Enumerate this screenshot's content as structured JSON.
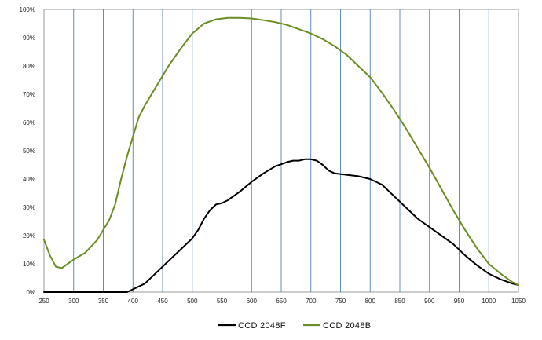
{
  "chart_data": {
    "type": "line",
    "title": "",
    "xlabel": "",
    "ylabel": "",
    "xlim": [
      250,
      1050
    ],
    "ylim": [
      0,
      100
    ],
    "x_ticks": [
      250,
      300,
      350,
      400,
      450,
      500,
      550,
      600,
      650,
      700,
      750,
      800,
      850,
      900,
      950,
      1000,
      1050
    ],
    "x_tick_labels": [
      "250",
      "300",
      "350",
      "400",
      "450",
      "500",
      "550",
      "600",
      "650",
      "700",
      "750",
      "800",
      "850",
      "900",
      "950",
      "1000",
      "1050"
    ],
    "y_ticks": [
      0,
      10,
      20,
      30,
      40,
      50,
      60,
      70,
      80,
      90,
      100
    ],
    "y_tick_labels": [
      "0%",
      "10%",
      "20%",
      "30%",
      "40%",
      "50%",
      "60%",
      "70%",
      "80%",
      "90%",
      "100%"
    ],
    "grid": {
      "vertical": true,
      "horizontal": false,
      "color": "#4f81bd"
    },
    "legend_position": "bottom-center",
    "series": [
      {
        "name": "CCD 2048F",
        "color": "#000000",
        "x": [
          250,
          300,
          350,
          390,
          400,
          420,
          440,
          460,
          480,
          500,
          510,
          520,
          530,
          540,
          550,
          560,
          580,
          600,
          620,
          640,
          660,
          670,
          680,
          690,
          700,
          710,
          720,
          730,
          740,
          760,
          780,
          800,
          810,
          820,
          840,
          860,
          880,
          900,
          920,
          940,
          960,
          980,
          1000,
          1020,
          1040,
          1050
        ],
        "y": [
          0,
          0,
          0,
          0,
          1,
          3,
          7,
          11,
          15,
          19,
          22,
          26,
          29,
          31,
          31.5,
          32.5,
          35.5,
          39,
          42,
          44.5,
          46,
          46.5,
          46.5,
          47,
          47,
          46.5,
          45,
          43,
          42,
          41.5,
          41,
          40,
          39,
          38,
          34,
          30,
          26,
          23,
          20,
          17,
          13,
          9.5,
          6.5,
          4.5,
          3,
          2.5
        ]
      },
      {
        "name": "CCD 2048B",
        "color": "#6b8e23",
        "x": [
          250,
          260,
          270,
          280,
          290,
          300,
          320,
          340,
          350,
          360,
          370,
          380,
          390,
          400,
          410,
          420,
          440,
          460,
          480,
          500,
          520,
          540,
          560,
          580,
          600,
          620,
          640,
          660,
          680,
          700,
          720,
          740,
          760,
          780,
          800,
          820,
          840,
          860,
          880,
          900,
          920,
          940,
          960,
          980,
          1000,
          1020,
          1040,
          1050
        ],
        "y": [
          18.5,
          13,
          9,
          8.5,
          10,
          11.5,
          14,
          18.5,
          22,
          25.5,
          31,
          40,
          48,
          55,
          62,
          66,
          73,
          80,
          86,
          91.5,
          95,
          96.5,
          97,
          97,
          96.8,
          96.2,
          95.5,
          94.5,
          93,
          91.5,
          89.5,
          87,
          84,
          80,
          76,
          70.5,
          64.5,
          58,
          51,
          44,
          36.5,
          29,
          22,
          15.5,
          10,
          6.5,
          3.5,
          2.5
        ]
      }
    ]
  }
}
